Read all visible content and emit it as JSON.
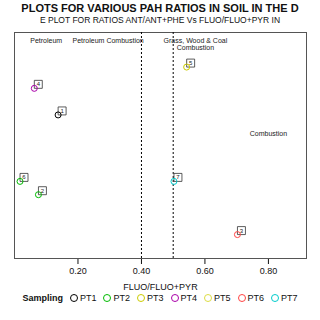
{
  "chart_data": {
    "type": "scatter",
    "title": "PLOTS FOR VARIOUS PAH RATIOS IN SOIL IN THE D",
    "subtitle": "E PLOT FOR RATIOS ANT/ANT+PHE Vs FLUO/FLUO+PYR IN",
    "xlabel": "FLUO/FLUO+PYR",
    "xlim": [
      0.0,
      0.92
    ],
    "ylim": [
      0.0,
      0.85
    ],
    "xticks": [
      {
        "value": 0.2,
        "label": "0.20"
      },
      {
        "value": 0.4,
        "label": "0.40"
      },
      {
        "value": 0.6,
        "label": "0.60"
      },
      {
        "value": 0.8,
        "label": "0.80"
      }
    ],
    "tick_labels": "x",
    "grid": false,
    "vlines": [
      0.4,
      0.5
    ],
    "annotations": [
      {
        "text": "Petroleum",
        "x": 0.1,
        "y": 0.83
      },
      {
        "text": "Petroleum Combustion",
        "x": 0.295,
        "y": 0.83
      },
      {
        "text": "Grass, Wood & Coal\nCombustion",
        "x": 0.57,
        "y": 0.83
      },
      {
        "text": "Combustion",
        "x": 0.8,
        "y": 0.48
      }
    ],
    "x": [
      0.075,
      0.15,
      0.555,
      0.03,
      0.088,
      0.515,
      0.715
    ],
    "values": [
      0.655,
      0.555,
      0.735,
      0.305,
      0.255,
      0.305,
      0.105
    ],
    "labels": [
      "4",
      "1",
      "5",
      "6",
      "2",
      "7",
      "3"
    ],
    "colors": [
      "#aa00aa",
      "#000000",
      "#cccc00",
      "#00bb00",
      "#00bb00",
      "#00cccc",
      "#ff4444"
    ],
    "legend": "bottom",
    "legend_title": "Sampling",
    "series": [
      {
        "name": "PT1",
        "color": "#000000"
      },
      {
        "name": "PT2",
        "color": "#00bb00"
      },
      {
        "name": "PT3",
        "color": "#cccc00"
      },
      {
        "name": "PT4",
        "color": "#aa00aa"
      },
      {
        "name": "PT5",
        "color": "#dddd44"
      },
      {
        "name": "PT6",
        "color": "#ff4444"
      },
      {
        "name": "PT7",
        "color": "#00cccc"
      }
    ]
  }
}
